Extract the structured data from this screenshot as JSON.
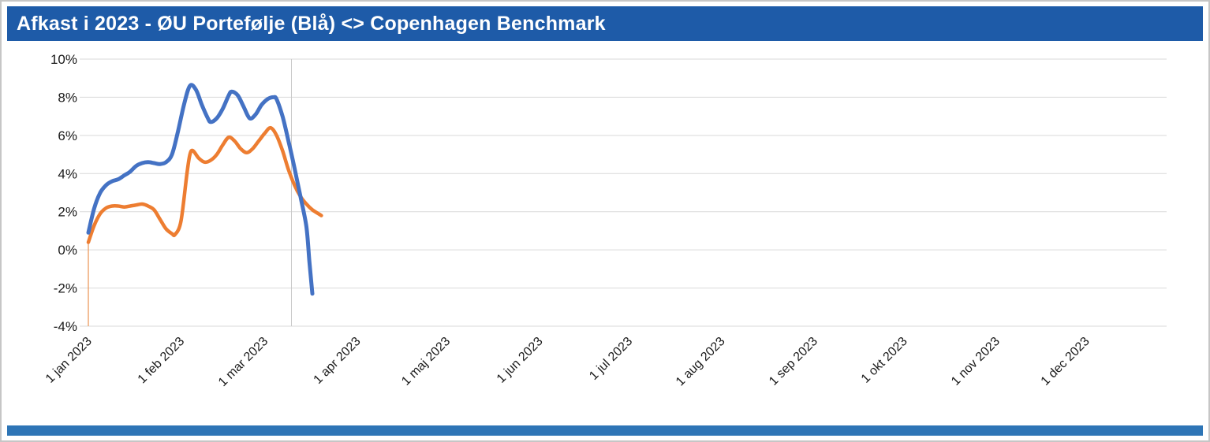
{
  "window": {
    "title": "Afkast i 2023 - ØU Portefølje (Blå) <> Copenhagen Benchmark"
  },
  "colors": {
    "header_bg": "#1e5ba8",
    "footer_bg": "#2e75b6",
    "gridline": "#d9d9d9",
    "vertical_gridline": "#c9c9c9",
    "axis_text": "#1a1a1a",
    "portfolio_line": "#4472c4",
    "benchmark_line": "#ed7d31"
  },
  "chart_data": {
    "type": "line",
    "title": "Afkast i 2023 - ØU Portefølje (Blå) <> Copenhagen Benchmark",
    "xlabel": "",
    "ylabel": "",
    "ylim": [
      -4,
      10
    ],
    "grid": "horizontal",
    "legend": "none",
    "x_unit": "days since 1 jan 2023",
    "yticks": [
      {
        "value": 10,
        "label": "10%"
      },
      {
        "value": 8,
        "label": "8%"
      },
      {
        "value": 6,
        "label": "6%"
      },
      {
        "value": 4,
        "label": "4%"
      },
      {
        "value": 2,
        "label": "2%"
      },
      {
        "value": 0,
        "label": "0%"
      },
      {
        "value": -2,
        "label": "-2%"
      },
      {
        "value": -4,
        "label": "-4%"
      }
    ],
    "xticks": [
      {
        "day": 0,
        "label": "1 jan 2023"
      },
      {
        "day": 31,
        "label": "1 feb 2023"
      },
      {
        "day": 59,
        "label": "1 mar 2023"
      },
      {
        "day": 90,
        "label": "1 apr 2023"
      },
      {
        "day": 120,
        "label": "1 maj 2023"
      },
      {
        "day": 151,
        "label": "1 jun 2023"
      },
      {
        "day": 181,
        "label": "1 jul 2023"
      },
      {
        "day": 212,
        "label": "1 aug 2023"
      },
      {
        "day": 243,
        "label": "1 sep 2023"
      },
      {
        "day": 273,
        "label": "1 okt 2023"
      },
      {
        "day": 304,
        "label": "1 nov 2023"
      },
      {
        "day": 334,
        "label": "1 dec 2023"
      }
    ],
    "vertical_line_day": 68,
    "start_drop_line": {
      "day": 0,
      "from": -4,
      "to": 0.4,
      "color": "#ed9a5c"
    },
    "series": [
      {
        "name": "ØU Portefølje (Blå)",
        "color": "#4472c4",
        "width": 5,
        "points": [
          [
            0,
            0.9
          ],
          [
            2,
            2.2
          ],
          [
            4,
            3.0
          ],
          [
            6,
            3.4
          ],
          [
            8,
            3.6
          ],
          [
            10,
            3.7
          ],
          [
            12,
            3.9
          ],
          [
            14,
            4.1
          ],
          [
            16,
            4.4
          ],
          [
            18,
            4.55
          ],
          [
            20,
            4.6
          ],
          [
            22,
            4.55
          ],
          [
            24,
            4.5
          ],
          [
            26,
            4.6
          ],
          [
            28,
            5.0
          ],
          [
            30,
            6.2
          ],
          [
            32,
            7.6
          ],
          [
            34,
            8.6
          ],
          [
            36,
            8.4
          ],
          [
            38,
            7.6
          ],
          [
            40,
            6.9
          ],
          [
            41,
            6.7
          ],
          [
            43,
            6.9
          ],
          [
            45,
            7.4
          ],
          [
            47,
            8.1
          ],
          [
            48,
            8.3
          ],
          [
            50,
            8.1
          ],
          [
            52,
            7.5
          ],
          [
            54,
            6.9
          ],
          [
            56,
            7.1
          ],
          [
            58,
            7.6
          ],
          [
            60,
            7.9
          ],
          [
            62,
            8.0
          ],
          [
            63,
            7.9
          ],
          [
            65,
            7.0
          ],
          [
            67,
            5.7
          ],
          [
            69,
            4.3
          ],
          [
            71,
            2.8
          ],
          [
            73,
            1.2
          ],
          [
            74,
            -0.6
          ],
          [
            75,
            -2.3
          ]
        ]
      },
      {
        "name": "Copenhagen Benchmark",
        "color": "#ed7d31",
        "width": 4.5,
        "points": [
          [
            0,
            0.4
          ],
          [
            2,
            1.3
          ],
          [
            4,
            1.9
          ],
          [
            6,
            2.2
          ],
          [
            8,
            2.3
          ],
          [
            10,
            2.3
          ],
          [
            12,
            2.25
          ],
          [
            14,
            2.3
          ],
          [
            16,
            2.35
          ],
          [
            18,
            2.4
          ],
          [
            20,
            2.3
          ],
          [
            22,
            2.1
          ],
          [
            24,
            1.6
          ],
          [
            26,
            1.1
          ],
          [
            28,
            0.85
          ],
          [
            29,
            0.8
          ],
          [
            31,
            1.5
          ],
          [
            33,
            4.0
          ],
          [
            34,
            5.0
          ],
          [
            35,
            5.2
          ],
          [
            37,
            4.8
          ],
          [
            39,
            4.6
          ],
          [
            41,
            4.7
          ],
          [
            43,
            5.0
          ],
          [
            45,
            5.5
          ],
          [
            47,
            5.9
          ],
          [
            49,
            5.7
          ],
          [
            51,
            5.3
          ],
          [
            53,
            5.1
          ],
          [
            55,
            5.3
          ],
          [
            57,
            5.7
          ],
          [
            59,
            6.1
          ],
          [
            61,
            6.4
          ],
          [
            63,
            6.0
          ],
          [
            65,
            5.2
          ],
          [
            67,
            4.2
          ],
          [
            69,
            3.4
          ],
          [
            71,
            2.8
          ],
          [
            73,
            2.4
          ],
          [
            75,
            2.1
          ],
          [
            78,
            1.8
          ]
        ]
      }
    ]
  }
}
